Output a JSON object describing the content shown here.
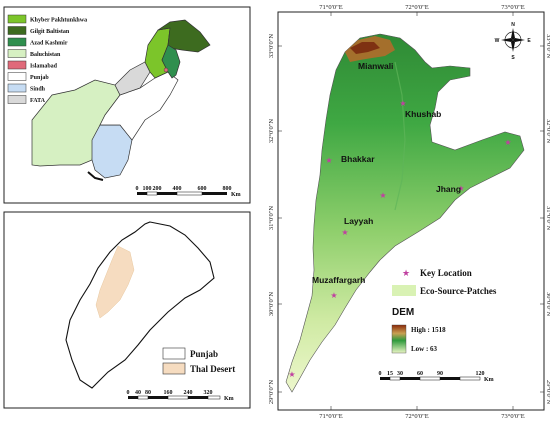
{
  "pakistan_panel": {
    "legend": [
      {
        "label": "Khyber Pakhtunkhwa",
        "color": "#7cc52a"
      },
      {
        "label": "Gilgit Baltistan",
        "color": "#3d6b1f"
      },
      {
        "label": "Azad Kashmir",
        "color": "#2f8f4e"
      },
      {
        "label": "Baluchistan",
        "color": "#d6f0c2"
      },
      {
        "label": "Islamabad",
        "color": "#e06a7a"
      },
      {
        "label": "Punjab",
        "color": "#ffffff"
      },
      {
        "label": "Sindh",
        "color": "#c6dcf3"
      },
      {
        "label": "FATA",
        "color": "#d9d9d9"
      }
    ],
    "scale": {
      "ticks": [
        "0",
        "100",
        "200",
        "400",
        "600",
        "800"
      ],
      "unit": "Km"
    }
  },
  "punjab_panel": {
    "legend": [
      {
        "label": "Punjab",
        "color": "#ffffff"
      },
      {
        "label": "Thal Desert",
        "color": "#f6dcc0"
      }
    ],
    "scale": {
      "ticks": [
        "0",
        "40",
        "80",
        "160",
        "240",
        "320"
      ],
      "unit": "Km"
    }
  },
  "main_map": {
    "top_coords": [
      "71°0'0\"E",
      "72°0'0\"E",
      "73°0'0\"E"
    ],
    "bottom_coords": [
      "71°0'0\"E",
      "72°0'0\"E",
      "73°0'0\"E"
    ],
    "left_coords": [
      "33°0'0\"N",
      "32°0'0\"N",
      "31°0'0\"N",
      "30°0'0\"N",
      "29°0'0\"N"
    ],
    "right_coords": [
      "33°0'0\"N",
      "32°0'0\"N",
      "31°0'0\"N",
      "30°0'0\"N",
      "29°0'0\"N"
    ],
    "cities": [
      {
        "id": "mianwali",
        "name": "Mianwali"
      },
      {
        "id": "khushab",
        "name": "Khushab"
      },
      {
        "id": "bhakkar",
        "name": "Bhakkar"
      },
      {
        "id": "jhang",
        "name": "Jhang"
      },
      {
        "id": "layyah",
        "name": "Layyah"
      },
      {
        "id": "muzaffargarh",
        "name": "Muzaffargarh"
      }
    ],
    "legend": {
      "key_location": "Key Location",
      "eco_patches": "Eco-Source-Patches",
      "dem_title": "DEM",
      "dem_high": "High : 1518",
      "dem_low": "Low : 63"
    },
    "scale": {
      "ticks": [
        "0",
        "15",
        "30",
        "60",
        "90",
        "120"
      ],
      "unit": "Km"
    },
    "north_arrow": {
      "n": "N",
      "s": "S",
      "e": "E",
      "w": "W"
    },
    "colors": {
      "dem_high": "#8b2a0a",
      "dem_mid": "#2e9a3c",
      "dem_low": "#e9f5c4",
      "key_marker": "#c040a0"
    }
  }
}
